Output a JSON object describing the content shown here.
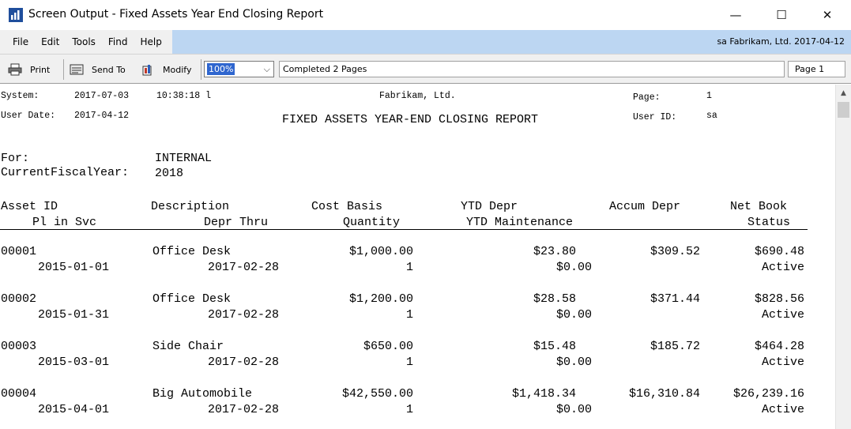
{
  "window": {
    "title": "Screen Output - Fixed Assets Year End Closing Report",
    "minimize_glyph": "—",
    "maximize_glyph": "☐",
    "close_glyph": "✕"
  },
  "menu": {
    "items": [
      "File",
      "Edit",
      "Tools",
      "Find",
      "Help"
    ],
    "user_info": "sa  Fabrikam, Ltd.  2017-04-12"
  },
  "toolbar": {
    "print_label": "Print",
    "send_to_label": "Send To",
    "modify_label": "Modify",
    "zoom_value": "100%",
    "status": "Completed 2 Pages",
    "page": "Page 1"
  },
  "report": {
    "system_label": "System:",
    "system_date": "2017-07-03",
    "system_time": "10:38:18 l",
    "company": "Fabrikam, Ltd.",
    "page_label": "Page:",
    "page_number": "1",
    "user_date_label": "User Date:",
    "user_date": "2017-04-12",
    "title": "FIXED ASSETS YEAR-END CLOSING REPORT",
    "user_id_label": "User ID:",
    "user_id": "sa",
    "for_label": "For:",
    "for_value": "INTERNAL",
    "fiscal_year_label": "CurrentFiscalYear:",
    "fiscal_year": "2018",
    "columns_row1": {
      "asset_id": "Asset ID",
      "description": "Description",
      "cost_basis": "Cost Basis",
      "ytd_depr": "YTD Depr",
      "accum_depr": "Accum Depr",
      "net_book": "Net Book"
    },
    "columns_row2": {
      "pl_in_svc": "Pl in Svc",
      "depr_thru": "Depr Thru",
      "quantity": "Quantity",
      "ytd_maintenance": "YTD Maintenance",
      "status": "Status"
    },
    "assets": [
      {
        "asset_id": "00001",
        "description": "Office Desk",
        "cost_basis": "$1,000.00",
        "ytd_depr": "$23.80",
        "accum_depr": "$309.52",
        "net_book": "$690.48",
        "pl_in_svc": "2015-01-01",
        "depr_thru": "2017-02-28",
        "quantity": "1",
        "ytd_maintenance": "$0.00",
        "status": "Active"
      },
      {
        "asset_id": "00002",
        "description": "Office Desk",
        "cost_basis": "$1,200.00",
        "ytd_depr": "$28.58",
        "accum_depr": "$371.44",
        "net_book": "$828.56",
        "pl_in_svc": "2015-01-31",
        "depr_thru": "2017-02-28",
        "quantity": "1",
        "ytd_maintenance": "$0.00",
        "status": "Active"
      },
      {
        "asset_id": "00003",
        "description": "Side Chair",
        "cost_basis": "$650.00",
        "ytd_depr": "$15.48",
        "accum_depr": "$185.72",
        "net_book": "$464.28",
        "pl_in_svc": "2015-03-01",
        "depr_thru": "2017-02-28",
        "quantity": "1",
        "ytd_maintenance": "$0.00",
        "status": "Active"
      },
      {
        "asset_id": "00004",
        "description": "Big Automobile",
        "cost_basis": "$42,550.00",
        "ytd_depr": "$1,418.34",
        "accum_depr": "$16,310.84",
        "net_book": "$26,239.16",
        "pl_in_svc": "2015-04-01",
        "depr_thru": "2017-02-28",
        "quantity": "1",
        "ytd_maintenance": "$0.00",
        "status": "Active"
      }
    ]
  },
  "scrollbar": {
    "up_glyph": "▲"
  },
  "colors": {
    "menu_highlight": "#bcd6f2",
    "zoom_selection": "#2f66cf",
    "toolbar_bg": "#f0f0f0"
  },
  "icons": {
    "app": "report-app-icon",
    "print": "printer-icon",
    "send_to": "send-to-icon",
    "modify": "modify-icon"
  }
}
